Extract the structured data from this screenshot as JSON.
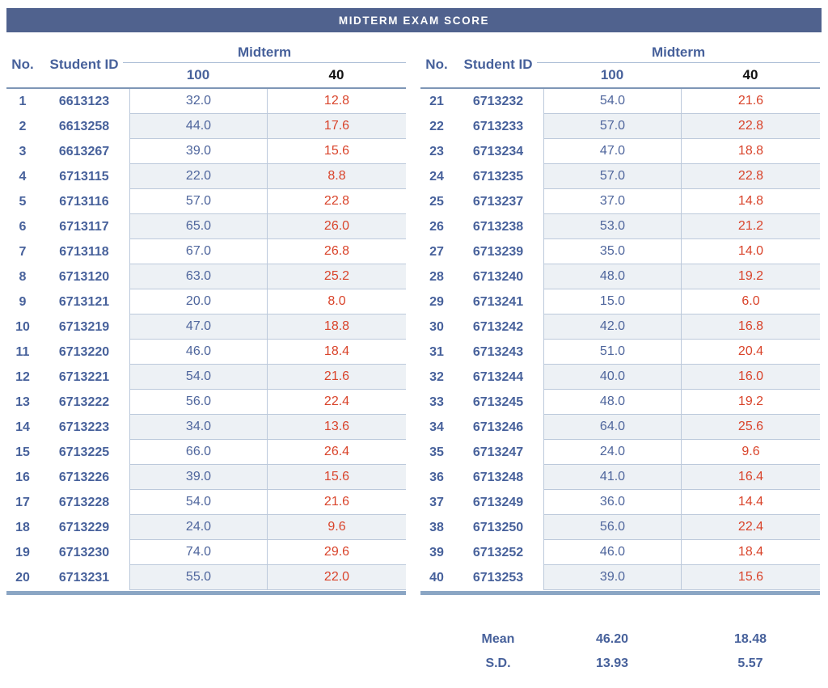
{
  "title": "MIDTERM EXAM SCORE",
  "columns": {
    "no": "No.",
    "student_id": "Student ID",
    "group": "Midterm",
    "raw": "100",
    "scaled": "40"
  },
  "tables": [
    {
      "rows": [
        {
          "no": "1",
          "student_id": "6613123",
          "score_100": "32.0",
          "score_40": "12.8"
        },
        {
          "no": "2",
          "student_id": "6613258",
          "score_100": "44.0",
          "score_40": "17.6"
        },
        {
          "no": "3",
          "student_id": "6613267",
          "score_100": "39.0",
          "score_40": "15.6"
        },
        {
          "no": "4",
          "student_id": "6713115",
          "score_100": "22.0",
          "score_40": "8.8"
        },
        {
          "no": "5",
          "student_id": "6713116",
          "score_100": "57.0",
          "score_40": "22.8"
        },
        {
          "no": "6",
          "student_id": "6713117",
          "score_100": "65.0",
          "score_40": "26.0"
        },
        {
          "no": "7",
          "student_id": "6713118",
          "score_100": "67.0",
          "score_40": "26.8"
        },
        {
          "no": "8",
          "student_id": "6713120",
          "score_100": "63.0",
          "score_40": "25.2"
        },
        {
          "no": "9",
          "student_id": "6713121",
          "score_100": "20.0",
          "score_40": "8.0"
        },
        {
          "no": "10",
          "student_id": "6713219",
          "score_100": "47.0",
          "score_40": "18.8"
        },
        {
          "no": "11",
          "student_id": "6713220",
          "score_100": "46.0",
          "score_40": "18.4"
        },
        {
          "no": "12",
          "student_id": "6713221",
          "score_100": "54.0",
          "score_40": "21.6"
        },
        {
          "no": "13",
          "student_id": "6713222",
          "score_100": "56.0",
          "score_40": "22.4"
        },
        {
          "no": "14",
          "student_id": "6713223",
          "score_100": "34.0",
          "score_40": "13.6"
        },
        {
          "no": "15",
          "student_id": "6713225",
          "score_100": "66.0",
          "score_40": "26.4"
        },
        {
          "no": "16",
          "student_id": "6713226",
          "score_100": "39.0",
          "score_40": "15.6"
        },
        {
          "no": "17",
          "student_id": "6713228",
          "score_100": "54.0",
          "score_40": "21.6"
        },
        {
          "no": "18",
          "student_id": "6713229",
          "score_100": "24.0",
          "score_40": "9.6"
        },
        {
          "no": "19",
          "student_id": "6713230",
          "score_100": "74.0",
          "score_40": "29.6"
        },
        {
          "no": "20",
          "student_id": "6713231",
          "score_100": "55.0",
          "score_40": "22.0"
        }
      ]
    },
    {
      "rows": [
        {
          "no": "21",
          "student_id": "6713232",
          "score_100": "54.0",
          "score_40": "21.6"
        },
        {
          "no": "22",
          "student_id": "6713233",
          "score_100": "57.0",
          "score_40": "22.8"
        },
        {
          "no": "23",
          "student_id": "6713234",
          "score_100": "47.0",
          "score_40": "18.8"
        },
        {
          "no": "24",
          "student_id": "6713235",
          "score_100": "57.0",
          "score_40": "22.8"
        },
        {
          "no": "25",
          "student_id": "6713237",
          "score_100": "37.0",
          "score_40": "14.8"
        },
        {
          "no": "26",
          "student_id": "6713238",
          "score_100": "53.0",
          "score_40": "21.2"
        },
        {
          "no": "27",
          "student_id": "6713239",
          "score_100": "35.0",
          "score_40": "14.0"
        },
        {
          "no": "28",
          "student_id": "6713240",
          "score_100": "48.0",
          "score_40": "19.2"
        },
        {
          "no": "29",
          "student_id": "6713241",
          "score_100": "15.0",
          "score_40": "6.0"
        },
        {
          "no": "30",
          "student_id": "6713242",
          "score_100": "42.0",
          "score_40": "16.8"
        },
        {
          "no": "31",
          "student_id": "6713243",
          "score_100": "51.0",
          "score_40": "20.4"
        },
        {
          "no": "32",
          "student_id": "6713244",
          "score_100": "40.0",
          "score_40": "16.0"
        },
        {
          "no": "33",
          "student_id": "6713245",
          "score_100": "48.0",
          "score_40": "19.2"
        },
        {
          "no": "34",
          "student_id": "6713246",
          "score_100": "64.0",
          "score_40": "25.6"
        },
        {
          "no": "35",
          "student_id": "6713247",
          "score_100": "24.0",
          "score_40": "9.6"
        },
        {
          "no": "36",
          "student_id": "6713248",
          "score_100": "41.0",
          "score_40": "16.4"
        },
        {
          "no": "37",
          "student_id": "6713249",
          "score_100": "36.0",
          "score_40": "14.4"
        },
        {
          "no": "38",
          "student_id": "6713250",
          "score_100": "56.0",
          "score_40": "22.4"
        },
        {
          "no": "39",
          "student_id": "6713252",
          "score_100": "46.0",
          "score_40": "18.4"
        },
        {
          "no": "40",
          "student_id": "6713253",
          "score_100": "39.0",
          "score_40": "15.6"
        }
      ]
    }
  ],
  "stats": {
    "mean": {
      "label": "Mean",
      "score_100": "46.20",
      "score_40": "18.48"
    },
    "sd": {
      "label": "S.D.",
      "score_100": "13.93",
      "score_40": "5.57"
    }
  },
  "colors": {
    "title_bar_bg": "#50628E",
    "header_text": "#47619B",
    "id_text": "#47619B",
    "score100_text": "#4E659C",
    "score40_text": "#D9432A",
    "alt_row_bg": "#EDF1F5",
    "cell_border": "#BCC9DB",
    "header_rule": "#7E96B6",
    "group_rule": "#A9BCD4",
    "table_bottom_rule": "#8BA6C4"
  }
}
